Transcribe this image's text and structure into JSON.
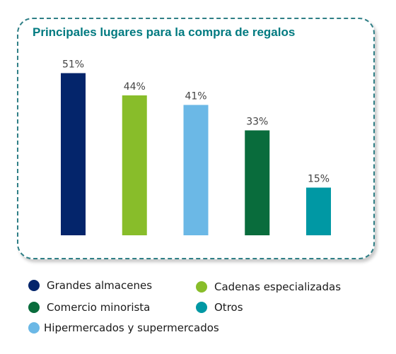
{
  "chart_data": {
    "type": "bar",
    "title": "Principales lugares para la compra de regalos",
    "categories": [
      "Grandes almacenes",
      "Cadenas especializadas",
      "Hipermercados y supermercados",
      "Comercio minorista",
      "Otros"
    ],
    "values": [
      51,
      44,
      41,
      33,
      15
    ],
    "value_labels": [
      "51%",
      "44%",
      "41%",
      "33%",
      "15%"
    ],
    "colors": [
      "#04256b",
      "#88bd2a",
      "#6bb8e6",
      "#096c3c",
      "#0098a4"
    ],
    "ylim": [
      0,
      60
    ],
    "grid": false,
    "xlabel": "",
    "ylabel": "",
    "legend_position": "bottom"
  },
  "legend": [
    {
      "label": "Grandes almacenes",
      "color": "#04256b"
    },
    {
      "label": "Cadenas especializadas",
      "color": "#88bd2a"
    },
    {
      "label": "Comercio minorista",
      "color": "#096c3c"
    },
    {
      "label": "Otros",
      "color": "#0098a4"
    },
    {
      "label": "Hipermercados y supermercados",
      "color": "#6bb8e6"
    }
  ]
}
